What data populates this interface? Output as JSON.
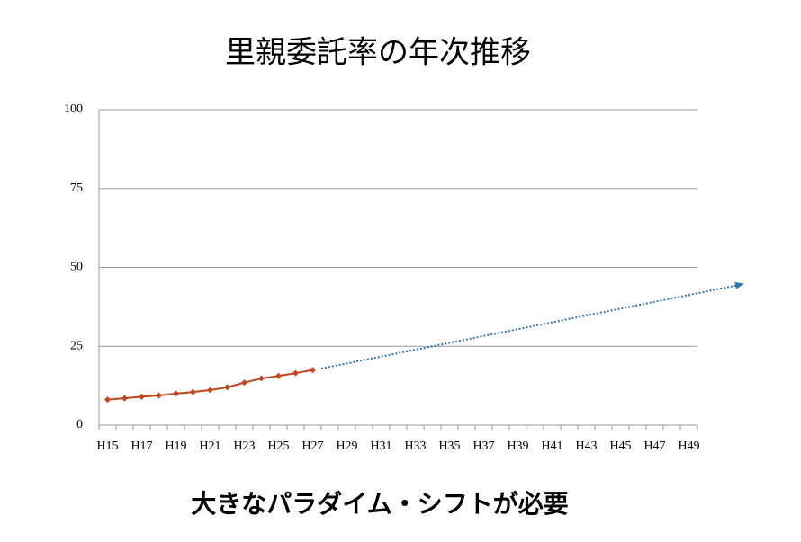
{
  "chart_data": {
    "type": "line",
    "title": "里親委託率の年次推移",
    "annotation": "大きなパラダイム・シフトが必要",
    "categories": [
      "H15",
      null,
      "H17",
      null,
      "H19",
      null,
      "H21",
      null,
      "H23",
      null,
      "H25",
      null,
      "H27",
      null,
      "H29",
      null,
      "H31",
      null,
      "H33",
      null,
      "H35",
      null,
      "H37",
      null,
      "H39",
      null,
      "H41",
      null,
      "H43",
      null,
      "H45",
      null,
      "H47",
      null,
      "H49"
    ],
    "series": [
      {
        "color": "#c0441e",
        "values": [
          8.1,
          8.5,
          9.0,
          9.4,
          10.0,
          10.5,
          11.1,
          12.0,
          13.5,
          14.8,
          15.6,
          16.5,
          17.5,
          null,
          null,
          null,
          null,
          null,
          null,
          null,
          null,
          null,
          null,
          null,
          null,
          null,
          null,
          null,
          null,
          null,
          null,
          null,
          null,
          null,
          null
        ]
      }
    ],
    "ylim": [
      0,
      100
    ],
    "yticks": [
      0,
      25,
      50,
      75,
      100
    ],
    "grid": true
  }
}
